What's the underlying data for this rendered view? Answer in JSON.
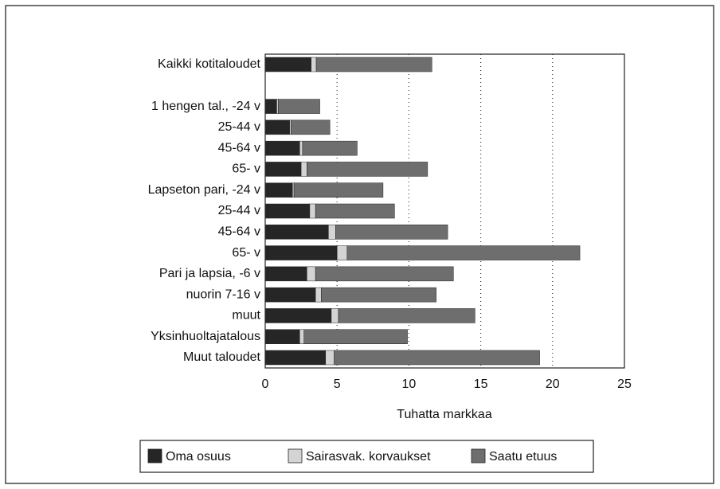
{
  "chart_data": {
    "type": "stacked_barh",
    "xlabel": "Tuhatta markkaa",
    "categories": [
      "Kaikki kotitaloudet",
      null,
      "1 hengen tal., -24 v",
      "25-44 v",
      "45-64 v",
      "65- v",
      "Lapseton pari, -24 v",
      "25-44 v",
      "45-64 v",
      "65- v",
      "Pari ja lapsia, -6 v",
      "nuorin 7-16 v",
      "muut",
      "Yksinhuoltajatalous",
      "Muut taloudet"
    ],
    "series": [
      {
        "name": "Oma osuus",
        "color": "#262626",
        "values": [
          3.2,
          null,
          0.8,
          1.7,
          2.4,
          2.5,
          1.9,
          3.1,
          4.4,
          5.0,
          2.9,
          3.5,
          4.6,
          2.4,
          4.2
        ]
      },
      {
        "name": "Sairasvak. korvaukset",
        "color": "#d4d4d4",
        "values": [
          0.35,
          null,
          0.1,
          0.1,
          0.2,
          0.4,
          0.1,
          0.4,
          0.5,
          0.7,
          0.6,
          0.4,
          0.5,
          0.3,
          0.6
        ]
      },
      {
        "name": "Saatu etuus",
        "color": "#6e6e6e",
        "values": [
          8.05,
          null,
          2.9,
          2.7,
          3.8,
          8.4,
          6.2,
          5.5,
          7.8,
          16.2,
          9.6,
          8.0,
          9.5,
          7.2,
          14.3
        ]
      }
    ],
    "xlim": [
      0,
      25
    ],
    "xticks": [
      0,
      5,
      10,
      15,
      20,
      25
    ],
    "grid": true
  }
}
